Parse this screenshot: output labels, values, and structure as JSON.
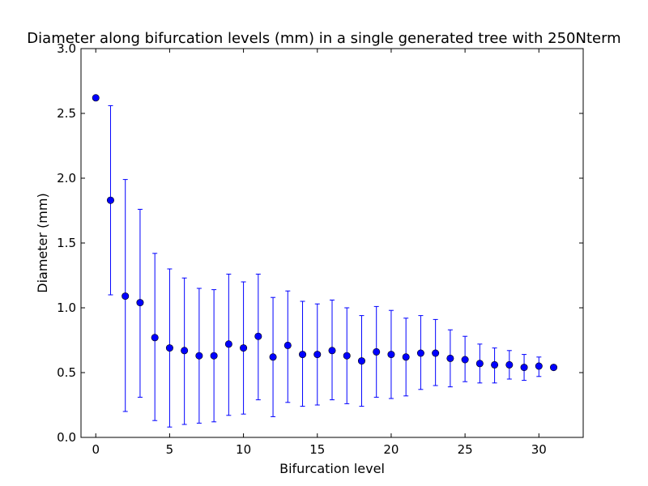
{
  "chart_data": {
    "type": "scatter",
    "title": "Diameter along bifurcation levels (mm) in a single generated tree with 250Nterm",
    "xlabel": "Bifurcation level",
    "ylabel": "Diameter (mm)",
    "xlim": [
      -1,
      33
    ],
    "ylim": [
      0,
      3.0
    ],
    "x_ticks": [
      0,
      5,
      10,
      15,
      20,
      25,
      30
    ],
    "x_tick_labels": [
      "0",
      "5",
      "10",
      "15",
      "20",
      "25",
      "30"
    ],
    "y_ticks": [
      0,
      0.5,
      1.0,
      1.5,
      2.0,
      2.5,
      3.0
    ],
    "y_tick_labels": [
      "0.0",
      "0.5",
      "1.0",
      "1.5",
      "2.0",
      "2.5",
      "3.0"
    ],
    "grid": false,
    "legend": false,
    "marker_color": "#0000ff",
    "errorbar_color": "#0000ff",
    "series": [
      {
        "x": [
          0,
          1,
          2,
          3,
          4,
          5,
          6,
          7,
          8,
          9,
          10,
          11,
          12,
          13,
          14,
          15,
          16,
          17,
          18,
          19,
          20,
          21,
          22,
          23,
          24,
          25,
          26,
          27,
          28,
          29,
          30,
          31
        ],
        "y": [
          2.62,
          1.83,
          1.09,
          1.04,
          0.77,
          0.69,
          0.67,
          0.63,
          0.63,
          0.72,
          0.69,
          0.78,
          0.62,
          0.71,
          0.64,
          0.64,
          0.67,
          0.63,
          0.59,
          0.66,
          0.64,
          0.62,
          0.65,
          0.65,
          0.61,
          0.6,
          0.57,
          0.56,
          0.56,
          0.54,
          0.55,
          0.54
        ],
        "err_low": [
          2.62,
          1.1,
          0.2,
          0.31,
          0.13,
          0.08,
          0.1,
          0.11,
          0.12,
          0.17,
          0.18,
          0.29,
          0.16,
          0.27,
          0.24,
          0.25,
          0.29,
          0.26,
          0.24,
          0.31,
          0.3,
          0.32,
          0.37,
          0.4,
          0.39,
          0.43,
          0.42,
          0.42,
          0.45,
          0.44,
          0.47,
          0.54
        ],
        "err_high": [
          2.62,
          2.56,
          1.99,
          1.76,
          1.42,
          1.3,
          1.23,
          1.15,
          1.14,
          1.26,
          1.2,
          1.26,
          1.08,
          1.13,
          1.05,
          1.03,
          1.06,
          1.0,
          0.94,
          1.01,
          0.98,
          0.92,
          0.94,
          0.91,
          0.83,
          0.78,
          0.72,
          0.69,
          0.67,
          0.64,
          0.62,
          0.54
        ]
      }
    ]
  }
}
